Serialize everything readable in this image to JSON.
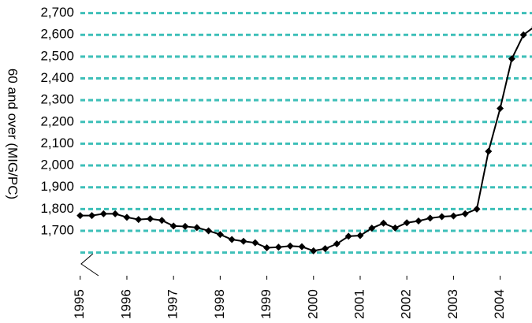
{
  "chart_data": {
    "type": "line",
    "y_axis_label": "60 and over (MIG/PC)",
    "x": [
      1995,
      1995.25,
      1995.5,
      1995.75,
      1996,
      1996.25,
      1996.5,
      1996.75,
      1997,
      1997.25,
      1997.5,
      1997.75,
      1998,
      1998.25,
      1998.5,
      1998.75,
      1999,
      1999.25,
      1999.5,
      1999.75,
      2000,
      2000.25,
      2000.5,
      2000.75,
      2001,
      2001.25,
      2001.5,
      2001.75,
      2002,
      2002.25,
      2002.5,
      2002.75,
      2003,
      2003.25,
      2003.5,
      2003.75,
      2004,
      2004.25,
      2004.5,
      2004.75
    ],
    "series": [
      {
        "name": "60 and over",
        "color": "#000000",
        "values": [
          1770,
          1770,
          1778,
          1778,
          1762,
          1752,
          1755,
          1748,
          1722,
          1720,
          1715,
          1700,
          1683,
          1660,
          1652,
          1645,
          1622,
          1625,
          1630,
          1627,
          1608,
          1618,
          1640,
          1675,
          1678,
          1712,
          1735,
          1713,
          1737,
          1745,
          1758,
          1765,
          1768,
          1778,
          1800,
          2065,
          2262,
          2490,
          2600,
          2640
        ]
      }
    ],
    "xlim": [
      1994.7,
      2004.75
    ],
    "xticks": [
      1995,
      1996,
      1997,
      1998,
      1999,
      2000,
      2001,
      2002,
      2003,
      2004
    ],
    "ylim": [
      1600,
      2700
    ],
    "yticks": [
      {
        "value": 1700,
        "label": "1,700"
      },
      {
        "value": 1800,
        "label": "1,800"
      },
      {
        "value": 1900,
        "label": "1,900"
      },
      {
        "value": 2000,
        "label": "2,000"
      },
      {
        "value": 2100,
        "label": "2,100"
      },
      {
        "value": 2200,
        "label": "2,200"
      },
      {
        "value": 2300,
        "label": "2,300"
      },
      {
        "value": 2400,
        "label": "2,400"
      },
      {
        "value": 2500,
        "label": "2,500"
      },
      {
        "value": 2600,
        "label": "2,600"
      },
      {
        "value": 2700,
        "label": "2,700"
      }
    ],
    "grid": true,
    "grid_color": "#3dbfb8",
    "marker": "diamond"
  }
}
